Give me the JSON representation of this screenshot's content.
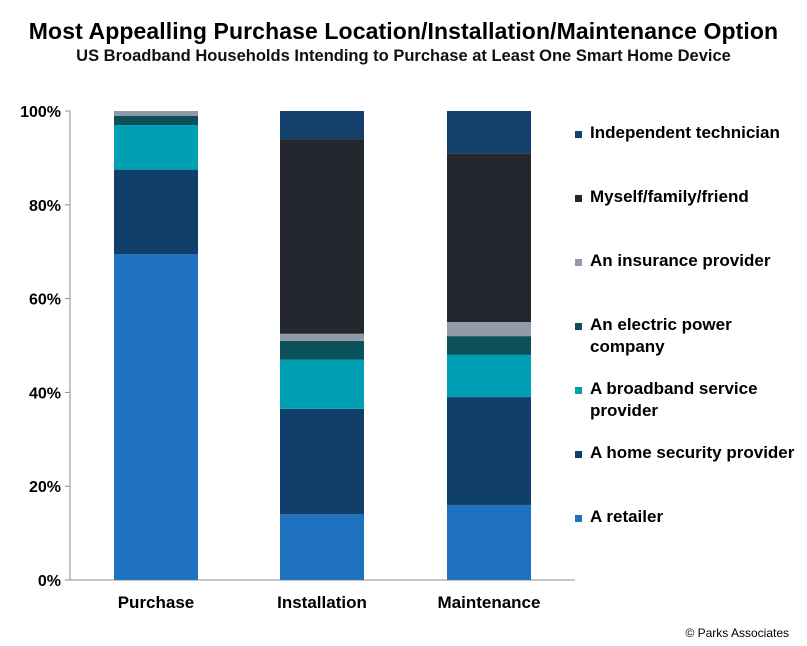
{
  "chart_data": {
    "type": "bar",
    "stacked": true,
    "title": "Most Appealling Purchase  Location/Installation/Maintenance Option",
    "subtitle": "US Broadband Households Intending to Purchase at Least One Smart Home Device",
    "categories": [
      "Purchase",
      "Installation",
      "Maintenance"
    ],
    "ylim": [
      0,
      100
    ],
    "yticks": [
      "0%",
      "20%",
      "40%",
      "60%",
      "80%",
      "100%"
    ],
    "ytick_values": [
      0,
      20,
      40,
      60,
      80,
      100
    ],
    "grid": false,
    "legend_position": "right",
    "series": [
      {
        "name": "A retailer",
        "color": "#1f72bf",
        "values": [
          69.5,
          14,
          16
        ]
      },
      {
        "name": "A home security provider",
        "color": "#123f6a",
        "values": [
          18,
          22.5,
          23
        ]
      },
      {
        "name": "A broadband service provider",
        "color": "#00a0b4",
        "values": [
          9.5,
          10.5,
          9
        ]
      },
      {
        "name": "An electric power company",
        "color": "#0c5059",
        "values": [
          2,
          4,
          4
        ]
      },
      {
        "name": "An insurance provider",
        "color": "#8f9ca7",
        "values": [
          1,
          1.5,
          3
        ]
      },
      {
        "name": "Myself/family/friend",
        "color": "#24272d",
        "values": [
          0,
          41.5,
          36
        ]
      },
      {
        "name": "Independent technician",
        "color": "#13406c",
        "values": [
          0,
          6,
          9
        ]
      }
    ]
  },
  "credit": "© Parks Associates"
}
